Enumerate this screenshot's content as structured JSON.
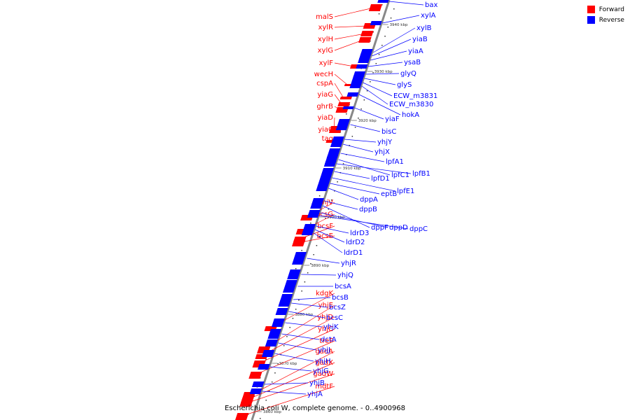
{
  "legend": [
    {
      "label": "Forward",
      "color": "#ff0000"
    },
    {
      "label": "Reverse",
      "color": "#0000ff"
    }
  ],
  "caption": "Escherichia coli W, complete genome. - 0..4900968",
  "colors": {
    "forward": "#ff0000",
    "reverse": "#0000ff",
    "backbone": "#888888"
  },
  "ticks": [
    "3940 kbp",
    "3930 kbp",
    "3920 kbp",
    "3910 kbp",
    "3900 kbp",
    "3890 kbp",
    "3880 kbp",
    "3870 kbp",
    "3860 kbp"
  ],
  "forward_genes": [
    "malS",
    "xylR",
    "xylH",
    "xylG",
    "xylF",
    "wecH",
    "cspA",
    "yiaG",
    "ghrB",
    "yiaD",
    "yiaC",
    "tag",
    "yhjV",
    "bcsG",
    "bcsF",
    "bcsE",
    "kdgK",
    "yhjE",
    "yhjD",
    "yhjC",
    "treF",
    "gadA",
    "gadX",
    "gadW",
    "mdtF"
  ],
  "reverse_genes": [
    "bax",
    "xylA",
    "xylB",
    "yiaB",
    "yiaA",
    "ysaB",
    "glyQ",
    "glyS",
    "ECW_m3831",
    "ECW_m3830",
    "hokA",
    "yiaF",
    "bisC",
    "yhjY",
    "yhjX",
    "lpfA1",
    "lpfC1",
    "lpfB1",
    "lpfD1",
    "lpfE1",
    "eptB",
    "dppA",
    "dppB",
    "dppF",
    "dppD",
    "dppC",
    "ldrD3",
    "ldrD2",
    "ldrD1",
    "yhjR",
    "yhjQ",
    "bcsA",
    "bcsB",
    "bcsZ",
    "bcsC",
    "yhjK",
    "dctA",
    "yhjJ",
    "yhjH",
    "yhjG",
    "yhjB",
    "yhjA"
  ]
}
